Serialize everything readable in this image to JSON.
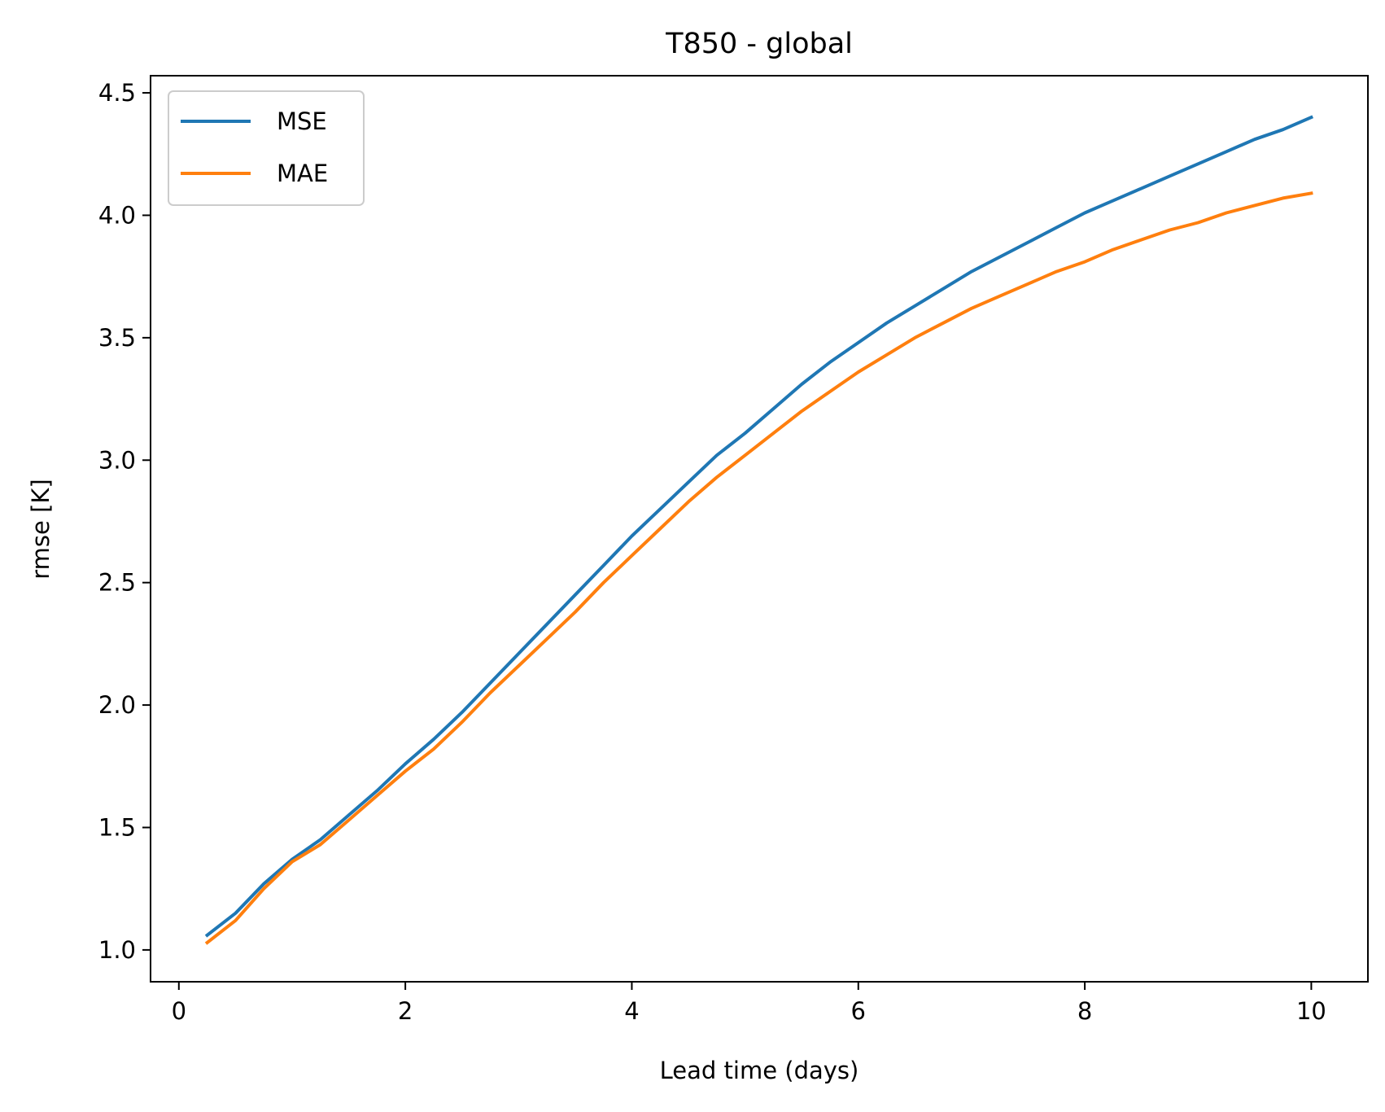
{
  "chart_data": {
    "type": "line",
    "title": "T850 - global",
    "xlabel": "Lead time (days)",
    "ylabel": "rmse [K]",
    "xlim": [
      -0.25,
      10.5
    ],
    "ylim": [
      0.87,
      4.57
    ],
    "xticks": [
      0,
      2,
      4,
      6,
      8,
      10
    ],
    "xtick_labels": [
      "0",
      "2",
      "4",
      "6",
      "8",
      "10"
    ],
    "yticks": [
      1.0,
      1.5,
      2.0,
      2.5,
      3.0,
      3.5,
      4.0,
      4.5
    ],
    "ytick_labels": [
      "1.0",
      "1.5",
      "2.0",
      "2.5",
      "3.0",
      "3.5",
      "4.0",
      "4.5"
    ],
    "grid": false,
    "legend_position": "upper-left",
    "x": [
      0.25,
      0.5,
      0.75,
      1.0,
      1.25,
      1.5,
      1.75,
      2.0,
      2.25,
      2.5,
      2.75,
      3.0,
      3.25,
      3.5,
      3.75,
      4.0,
      4.25,
      4.5,
      4.75,
      5.0,
      5.25,
      5.5,
      5.75,
      6.0,
      6.25,
      6.5,
      6.75,
      7.0,
      7.25,
      7.5,
      7.75,
      8.0,
      8.25,
      8.5,
      8.75,
      9.0,
      9.25,
      9.5,
      9.75,
      10.0
    ],
    "series": [
      {
        "name": "MSE",
        "color": "#1f77b4",
        "values": [
          1.06,
          1.15,
          1.27,
          1.37,
          1.45,
          1.55,
          1.65,
          1.76,
          1.86,
          1.97,
          2.09,
          2.21,
          2.33,
          2.45,
          2.57,
          2.69,
          2.8,
          2.91,
          3.02,
          3.11,
          3.21,
          3.31,
          3.4,
          3.48,
          3.56,
          3.63,
          3.7,
          3.77,
          3.83,
          3.89,
          3.95,
          4.01,
          4.06,
          4.11,
          4.16,
          4.21,
          4.26,
          4.31,
          4.35,
          4.4
        ]
      },
      {
        "name": "MAE",
        "color": "#ff7f0e",
        "values": [
          1.03,
          1.12,
          1.25,
          1.36,
          1.43,
          1.53,
          1.63,
          1.73,
          1.82,
          1.93,
          2.05,
          2.16,
          2.27,
          2.38,
          2.5,
          2.61,
          2.72,
          2.83,
          2.93,
          3.02,
          3.11,
          3.2,
          3.28,
          3.36,
          3.43,
          3.5,
          3.56,
          3.62,
          3.67,
          3.72,
          3.77,
          3.81,
          3.86,
          3.9,
          3.94,
          3.97,
          4.01,
          4.04,
          4.07,
          4.09
        ]
      }
    ]
  }
}
